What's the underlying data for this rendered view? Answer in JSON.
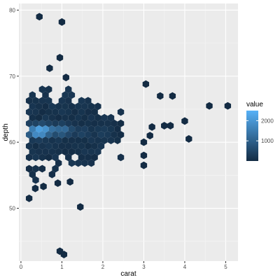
{
  "chart_data": {
    "type": "hexbin",
    "xlabel": "carat",
    "ylabel": "depth",
    "xlim": [
      -0.05,
      5.3
    ],
    "ylim": [
      42.0,
      81.0
    ],
    "x_ticks": [
      0,
      1,
      2,
      3,
      4,
      5
    ],
    "y_ticks": [
      50,
      60,
      70,
      80
    ],
    "grid": true,
    "legend": {
      "title": "value",
      "placement": "right",
      "breaks": [
        1000,
        2000
      ],
      "range": [
        1,
        2500
      ],
      "colors": {
        "low": "#132B43",
        "high": "#56B1F7"
      }
    },
    "colors": {
      "panel": "#EBEBEB",
      "grid_major": "#FFFFFF",
      "grid_minor": "#F5F5F5"
    },
    "dense_region": {
      "x_range": [
        0.2,
        2.5
      ],
      "y_range": [
        54.0,
        68.0
      ],
      "center_depth": 61.8
    },
    "hotspots": [
      {
        "carat": 0.3,
        "depth": 61.8,
        "value": 1600
      },
      {
        "carat": 0.4,
        "depth": 61.6,
        "value": 2300
      },
      {
        "carat": 0.5,
        "depth": 61.7,
        "value": 2500
      },
      {
        "carat": 0.7,
        "depth": 61.8,
        "value": 1400
      },
      {
        "carat": 1.0,
        "depth": 61.8,
        "value": 1300
      },
      {
        "carat": 1.2,
        "depth": 61.8,
        "value": 600
      },
      {
        "carat": 1.5,
        "depth": 61.5,
        "value": 500
      },
      {
        "carat": 2.0,
        "depth": 61.5,
        "value": 400
      }
    ],
    "sparse_points": [
      {
        "carat": 0.45,
        "depth": 79.0
      },
      {
        "carat": 1.0,
        "depth": 78.2
      },
      {
        "carat": 0.95,
        "depth": 43.5
      },
      {
        "carat": 1.05,
        "depth": 43.0
      },
      {
        "carat": 1.45,
        "depth": 50.2
      },
      {
        "carat": 0.2,
        "depth": 51.5
      },
      {
        "carat": 0.35,
        "depth": 53.0
      },
      {
        "carat": 0.55,
        "depth": 53.3
      },
      {
        "carat": 0.9,
        "depth": 53.8
      },
      {
        "carat": 1.2,
        "depth": 54.0
      },
      {
        "carat": 0.95,
        "depth": 72.8
      },
      {
        "carat": 0.7,
        "depth": 71.2
      },
      {
        "carat": 1.1,
        "depth": 69.8
      },
      {
        "carat": 3.05,
        "depth": 68.8
      },
      {
        "carat": 3.4,
        "depth": 67.0
      },
      {
        "carat": 3.7,
        "depth": 67.0
      },
      {
        "carat": 4.6,
        "depth": 65.5
      },
      {
        "carat": 5.05,
        "depth": 65.5
      },
      {
        "carat": 4.0,
        "depth": 63.2
      },
      {
        "carat": 4.1,
        "depth": 60.5
      },
      {
        "carat": 3.5,
        "depth": 62.5
      },
      {
        "carat": 3.65,
        "depth": 62.5
      },
      {
        "carat": 3.2,
        "depth": 62.3
      },
      {
        "carat": 3.15,
        "depth": 61.0
      },
      {
        "carat": 3.0,
        "depth": 60.0
      },
      {
        "carat": 3.0,
        "depth": 58.0
      },
      {
        "carat": 3.0,
        "depth": 56.5
      }
    ]
  }
}
